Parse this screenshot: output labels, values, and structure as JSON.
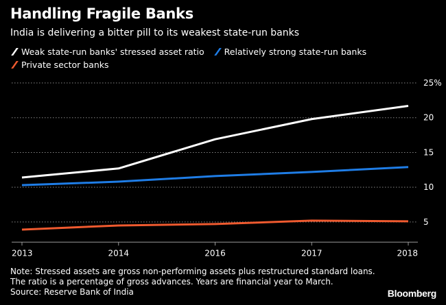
{
  "title": "Handling Fragile Banks",
  "subtitle": "India is delivering a bitter pill to its weakest state-run banks",
  "note_lines": [
    "Note: Stressed assets are gross non-performing assets plus restructured standard loans.",
    "The ratio is a percentage of gross advances. Years are financial year to March.",
    "Source: Reserve Bank of India"
  ],
  "brand": "Bloomberg",
  "chart_data": {
    "type": "line",
    "categories": [
      "2013",
      "2014",
      "2016",
      "2017",
      "2018"
    ],
    "series": [
      {
        "name": "Weak state-run banks' stressed asset ratio",
        "color": "#ffffff",
        "values": [
          11.4,
          12.7,
          16.9,
          19.8,
          21.7
        ]
      },
      {
        "name": "Relatively strong state-run banks",
        "color": "#1f7de6",
        "values": [
          10.3,
          10.8,
          11.6,
          12.2,
          12.9
        ]
      },
      {
        "name": "Private sector banks",
        "color": "#ef5a2f",
        "values": [
          3.9,
          4.5,
          4.7,
          5.2,
          5.1
        ]
      }
    ],
    "yticks": [
      "5",
      "10",
      "15",
      "20",
      "25%"
    ],
    "ytick_values": [
      5,
      10,
      15,
      20,
      25
    ],
    "ylim": [
      2.1,
      25
    ],
    "grid": true,
    "legend": "top-left",
    "background": "#000000"
  }
}
